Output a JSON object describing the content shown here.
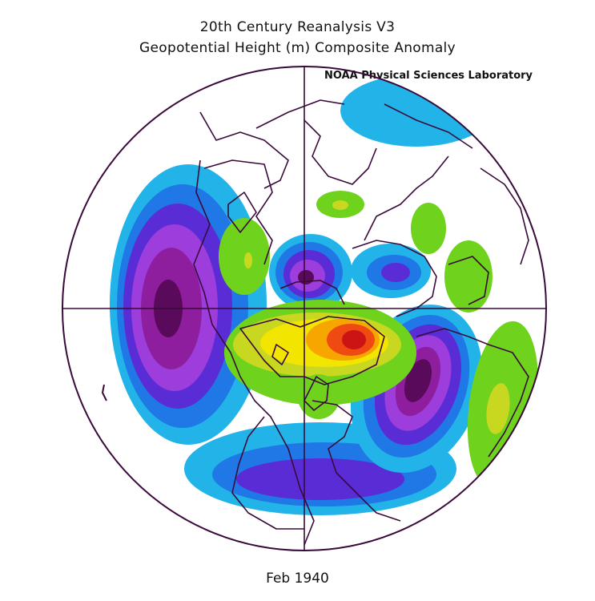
{
  "header": {
    "title": "20th Century Reanalysis V3",
    "subtitle": "Geopotential Height (m) Composite Anomaly",
    "credit": "NOAA Physical Sciences Laboratory"
  },
  "footer": {
    "date": "Feb 1940"
  },
  "map": {
    "projection": "north-polar-stereographic",
    "variable": "geopotential height composite anomaly",
    "palette": {
      "neg_strong": "#5a0a5a",
      "neg_4": "#8e1e9e",
      "neg_3": "#9d3ddc",
      "neg_2": "#5a2cd6",
      "neg_1": "#1f78e6",
      "neg_0": "#22b4e8",
      "pos_0": "#6fd21c",
      "pos_1": "#c8d820",
      "pos_2": "#f2e600",
      "pos_3": "#f7a600",
      "pos_4": "#ee4a12",
      "pos_strong": "#cc1414",
      "border": "#3a0a3a"
    }
  }
}
